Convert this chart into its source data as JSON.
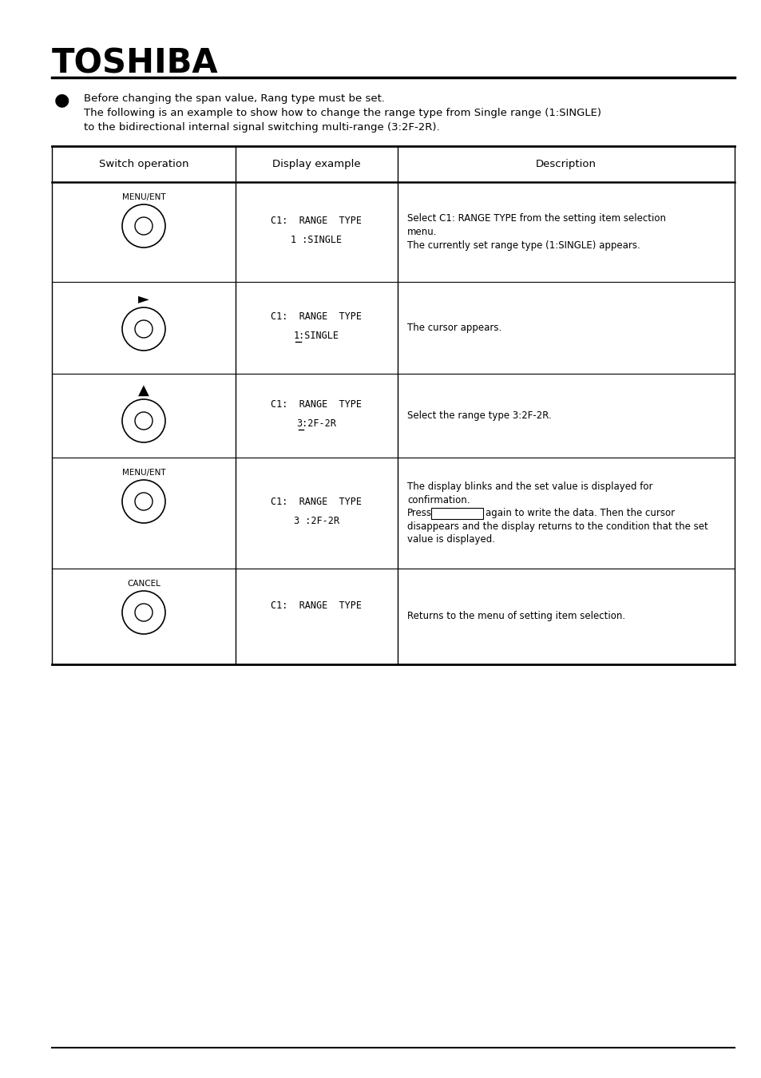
{
  "bg_color": "#ffffff",
  "header_title": "TOSHIBA",
  "bullet": "●",
  "intro": [
    "Before changing the span value, Rang type must be set.",
    "The following is an example to show how to change the range type from Single range (1:SINGLE)",
    "to the bidirectional internal signal switching multi-range (3:2F-2R)."
  ],
  "col_headers": [
    "Switch operation",
    "Display example",
    "Description"
  ],
  "rows": [
    {
      "switch_label": "MENU/ENT",
      "switch_type": "labeled_circle",
      "display1": "C1:  RANGE  TYPE",
      "display2": "1 :SINGLE",
      "display2_underline": false,
      "desc_lines": [
        "Select C1: RANGE TYPE from the setting item selection",
        "menu.",
        "The currently set range type (1:SINGLE) appears."
      ]
    },
    {
      "switch_label": "►",
      "switch_type": "arrow_circle",
      "display1": "C1:  RANGE  TYPE",
      "display2": "1:SINGLE",
      "display2_underline": true,
      "desc_lines": [
        "The cursor appears."
      ]
    },
    {
      "switch_label": "▲",
      "switch_type": "arrow_circle",
      "display1": "C1:  RANGE  TYPE",
      "display2": "3:2F-2R",
      "display2_underline": true,
      "desc_lines": [
        "Select the range type 3:2F-2R."
      ]
    },
    {
      "switch_label": "MENU/ENT",
      "switch_type": "labeled_circle",
      "display1": "C1:  RANGE  TYPE",
      "display2": "3 :2F-2R",
      "display2_underline": false,
      "desc_lines": [
        "The display blinks and the set value is displayed for",
        "confirmation.",
        "Press[box]again to write the data. Then the cursor",
        "disappears and the display returns to the condition that the set",
        "value is displayed."
      ]
    },
    {
      "switch_label": "CANCEL",
      "switch_type": "labeled_circle",
      "display1": "C1:  RANGE  TYPE",
      "display2": "",
      "display2_underline": false,
      "desc_lines": [
        "Returns to the menu of setting item selection."
      ]
    }
  ]
}
